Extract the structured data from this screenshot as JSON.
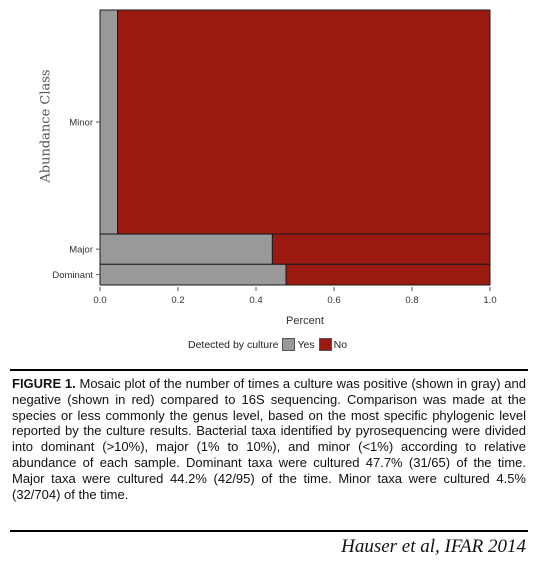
{
  "chart_data": {
    "type": "mosaic",
    "xlabel": "Percent",
    "ylabel": "Abundance Class",
    "xlim": [
      0.0,
      1.0
    ],
    "xticks": [
      "0.0",
      "0.2",
      "0.4",
      "0.6",
      "0.8",
      "1.0"
    ],
    "categories": [
      "Minor",
      "Major",
      "Dominant"
    ],
    "row_counts": [
      704,
      95,
      65
    ],
    "series": [
      {
        "name": "Yes",
        "color": "#999999",
        "values": [
          0.045,
          0.442,
          0.477
        ]
      },
      {
        "name": "No",
        "color": "#9b1b12",
        "values": [
          0.955,
          0.558,
          0.523
        ]
      }
    ],
    "legend_title": "Detected by culture",
    "legend_position": "bottom",
    "grid": false
  },
  "caption": {
    "label": "FIGURE 1.",
    "text": "Mosaic plot of the number of times a culture was positive (shown in gray) and negative (shown in red) compared to 16S sequencing. Comparison was made at the species or less commonly the genus level, based on the most specific phylogenic level reported by the culture results. Bacterial taxa identified by pyrosequencing were divided into dominant (>10%), major (1% to 10%), and minor (<1%) according to relative abundance of each sample. Dominant taxa were cultured 47.7% (31/65) of the time. Major taxa were cultured 44.2% (42/95) of the time. Minor taxa were cultured 4.5% (32/704) of the time."
  },
  "credit": "Hauser et al, IFAR 2014"
}
